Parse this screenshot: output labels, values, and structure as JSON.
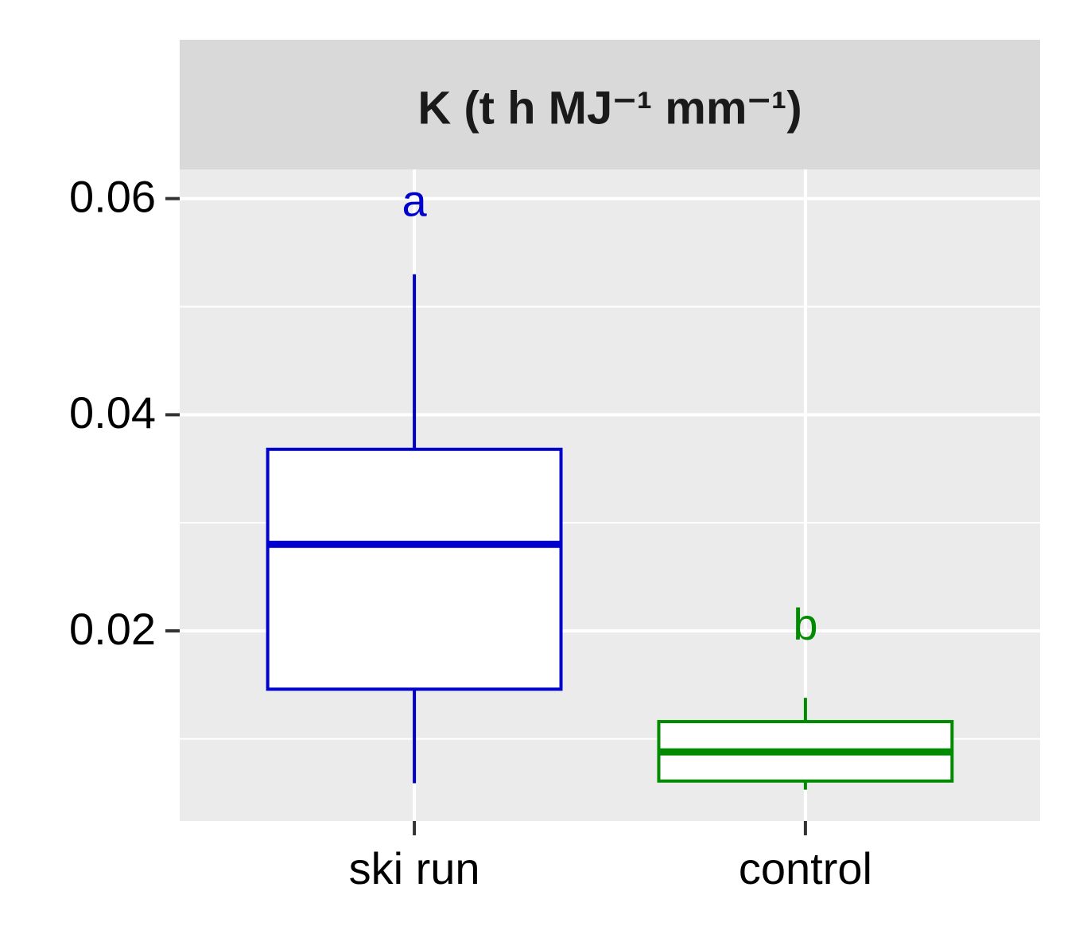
{
  "chart_data": {
    "type": "box",
    "title": "K (t h MJ⁻¹ mm⁻¹)",
    "categories": [
      "ski run",
      "control"
    ],
    "series": [
      {
        "name": "ski run",
        "color": "#0000cd",
        "whisker_low": 0.0059,
        "q1": 0.0146,
        "median": 0.028,
        "q3": 0.0368,
        "whisker_high": 0.053,
        "letter": "a"
      },
      {
        "name": "control",
        "color": "#008b00",
        "whisker_low": 0.0053,
        "q1": 0.0061,
        "median": 0.0088,
        "q3": 0.0116,
        "whisker_high": 0.0138,
        "letter": "b"
      }
    ],
    "ylim": [
      0.0024,
      0.0627
    ],
    "yticks": [
      0.02,
      0.04,
      0.06
    ],
    "yminor": [
      0.01,
      0.03,
      0.05
    ],
    "grid": true
  }
}
